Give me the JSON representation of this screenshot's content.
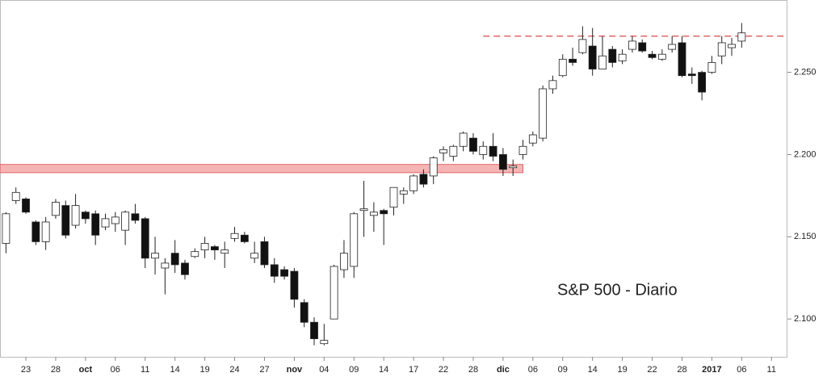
{
  "chart_data": {
    "type": "candlestick",
    "title": "S&P 500 - Diario",
    "categories": [
      null,
      null,
      "23",
      null,
      null,
      "28",
      null,
      null,
      "oct",
      null,
      null,
      "06",
      null,
      null,
      "11",
      null,
      null,
      "14",
      null,
      null,
      "19",
      null,
      null,
      "24",
      null,
      null,
      "27",
      null,
      null,
      "nov",
      null,
      null,
      "04",
      null,
      null,
      "09",
      null,
      null,
      "14",
      null,
      null,
      "17",
      null,
      null,
      "22",
      null,
      null,
      "28",
      null,
      null,
      "dic",
      null,
      null,
      "06",
      null,
      null,
      "09",
      null,
      null,
      "14",
      null,
      null,
      "19",
      null,
      null,
      "22",
      null,
      null,
      "28",
      null,
      null,
      "2017",
      null,
      null,
      "06",
      null,
      null,
      "11"
    ],
    "open": [
      2146,
      2172,
      2173,
      2159,
      2147,
      2163,
      2169,
      2157,
      2165,
      2164,
      2156,
      2158,
      2154,
      2164,
      2161,
      2137,
      2131,
      2140,
      2134,
      2138,
      2142,
      2144,
      2140,
      2149,
      2151,
      2137,
      2147,
      2133,
      2130,
      2129,
      2110,
      2098,
      2085,
      2100,
      2130,
      2132,
      2166,
      2163,
      2166,
      2168,
      2176,
      2178,
      2188,
      2187,
      2201,
      2199,
      2205,
      2210,
      2200,
      2205,
      2200,
      2192,
      2200,
      2207,
      2210,
      2240,
      2248,
      2258,
      2262,
      2266,
      2252,
      2264,
      2257,
      2264,
      2268,
      2261,
      2258,
      2264,
      2268,
      2249,
      2250,
      2250,
      2260,
      2265,
      2269,
      null,
      null,
      null
    ],
    "high": [
      2165,
      2180,
      2174,
      2160,
      2162,
      2173,
      2172,
      2176,
      2166,
      2166,
      2164,
      2165,
      2166,
      2170,
      2162,
      2150,
      2137,
      2148,
      2136,
      2143,
      2150,
      2145,
      2147,
      2156,
      2153,
      2147,
      2150,
      2137,
      2132,
      2131,
      2112,
      2101,
      2097,
      2133,
      2148,
      2165,
      2184,
      2171,
      2167,
      2180,
      2180,
      2188,
      2191,
      2199,
      2205,
      2206,
      2214,
      2213,
      2208,
      2213,
      2204,
      2197,
      2209,
      2214,
      2242,
      2248,
      2261,
      2265,
      2278,
      2277,
      2272,
      2266,
      2264,
      2272,
      2270,
      2263,
      2264,
      2272,
      2272,
      2253,
      2251,
      2260,
      2272,
      2271,
      2280,
      null,
      null,
      null
    ],
    "low": [
      2140,
      2170,
      2164,
      2145,
      2142,
      2161,
      2149,
      2155,
      2158,
      2145,
      2154,
      2153,
      2145,
      2158,
      2131,
      2127,
      2115,
      2128,
      2124,
      2137,
      2137,
      2136,
      2131,
      2147,
      2146,
      2134,
      2131,
      2122,
      2124,
      2107,
      2095,
      2084,
      2084,
      2100,
      2125,
      2125,
      2150,
      2153,
      2145,
      2163,
      2170,
      2176,
      2180,
      2182,
      2196,
      2196,
      2202,
      2200,
      2197,
      2196,
      2187,
      2187,
      2197,
      2205,
      2208,
      2237,
      2247,
      2254,
      2261,
      2248,
      2252,
      2253,
      2255,
      2262,
      2262,
      2258,
      2257,
      2262,
      2247,
      2243,
      2233,
      2249,
      2255,
      2260,
      2265,
      null,
      null,
      null
    ],
    "close": [
      2164,
      2177,
      2165,
      2147,
      2159,
      2171,
      2151,
      2169,
      2161,
      2151,
      2161,
      2162,
      2165,
      2160,
      2137,
      2140,
      2134,
      2133,
      2127,
      2141,
      2146,
      2142,
      2142,
      2152,
      2147,
      2140,
      2133,
      2126,
      2126,
      2112,
      2098,
      2088,
      2087,
      2132,
      2140,
      2164,
      2167,
      2165,
      2164,
      2180,
      2178,
      2187,
      2182,
      2198,
      2203,
      2205,
      2213,
      2202,
      2205,
      2199,
      2191,
      2193,
      2205,
      2212,
      2240,
      2245,
      2258,
      2256,
      2270,
      2252,
      2260,
      2256,
      2261,
      2269,
      2263,
      2259,
      2261,
      2267,
      2248,
      2248,
      2238,
      2256,
      2268,
      2267,
      2274,
      null,
      null,
      null
    ],
    "hline": 2272,
    "band": [
      2189,
      2194
    ],
    "line_color": "#e06666",
    "band_color": "#f4a3a3",
    "up_color": "#ffffff",
    "down_color": "#111111",
    "ylim": [
      2077,
      2294
    ],
    "yticks": [
      {
        "value": 2100,
        "label": "2.100"
      },
      {
        "value": 2150,
        "label": "2.150"
      },
      {
        "value": 2200,
        "label": "2.200"
      },
      {
        "value": 2250,
        "label": "2.250"
      }
    ]
  }
}
